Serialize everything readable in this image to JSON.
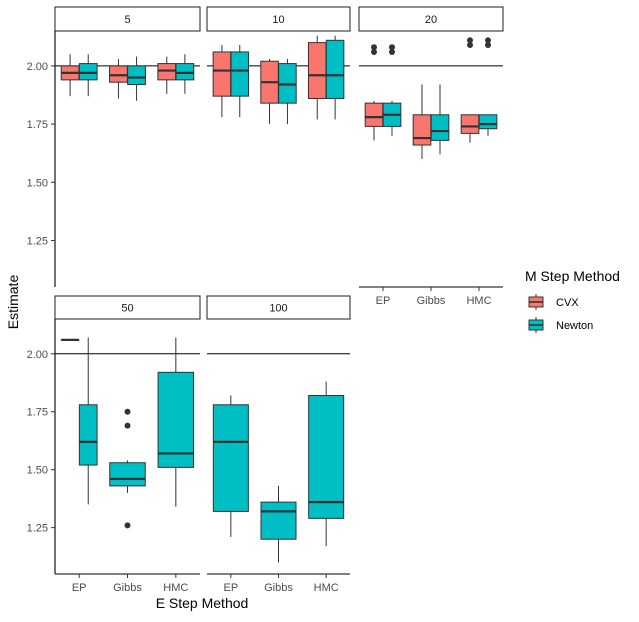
{
  "chart_data": {
    "type": "boxplot",
    "xlabel": "E Step Method",
    "ylabel": "Estimate",
    "categories": [
      "EP",
      "Gibbs",
      "HMC"
    ],
    "y_ticks": [
      1.25,
      1.5,
      1.75,
      2.0
    ],
    "y_tick_labels": [
      "1.25",
      "1.50",
      "1.75",
      "2.00"
    ],
    "ylim": [
      1.05,
      2.15
    ],
    "reference_line": 2.0,
    "legend": {
      "title": "M Step Method",
      "entries": [
        {
          "name": "CVX",
          "color": "#F8766D"
        },
        {
          "name": "Newton",
          "color": "#00BFC4"
        }
      ]
    },
    "panels": [
      {
        "label": "5",
        "show_x_axis": false,
        "boxes": [
          {
            "category": "EP",
            "method": "CVX",
            "min": 1.87,
            "q1": 1.94,
            "median": 1.97,
            "q3": 2.0,
            "max": 2.05,
            "outliers": []
          },
          {
            "category": "EP",
            "method": "Newton",
            "min": 1.87,
            "q1": 1.94,
            "median": 1.97,
            "q3": 2.01,
            "max": 2.05,
            "outliers": []
          },
          {
            "category": "Gibbs",
            "method": "CVX",
            "min": 1.86,
            "q1": 1.93,
            "median": 1.96,
            "q3": 2.0,
            "max": 2.03,
            "outliers": []
          },
          {
            "category": "Gibbs",
            "method": "Newton",
            "min": 1.85,
            "q1": 1.92,
            "median": 1.95,
            "q3": 2.0,
            "max": 2.04,
            "outliers": []
          },
          {
            "category": "HMC",
            "method": "CVX",
            "min": 1.88,
            "q1": 1.94,
            "median": 1.98,
            "q3": 2.01,
            "max": 2.04,
            "outliers": []
          },
          {
            "category": "HMC",
            "method": "Newton",
            "min": 1.88,
            "q1": 1.94,
            "median": 1.97,
            "q3": 2.01,
            "max": 2.05,
            "outliers": []
          }
        ]
      },
      {
        "label": "10",
        "show_x_axis": false,
        "boxes": [
          {
            "category": "EP",
            "method": "CVX",
            "min": 1.78,
            "q1": 1.87,
            "median": 1.98,
            "q3": 2.06,
            "max": 2.09,
            "outliers": []
          },
          {
            "category": "EP",
            "method": "Newton",
            "min": 1.78,
            "q1": 1.87,
            "median": 1.98,
            "q3": 2.06,
            "max": 2.09,
            "outliers": []
          },
          {
            "category": "Gibbs",
            "method": "CVX",
            "min": 1.75,
            "q1": 1.84,
            "median": 1.93,
            "q3": 2.02,
            "max": 2.03,
            "outliers": []
          },
          {
            "category": "Gibbs",
            "method": "Newton",
            "min": 1.75,
            "q1": 1.84,
            "median": 1.92,
            "q3": 2.01,
            "max": 2.03,
            "outliers": []
          },
          {
            "category": "HMC",
            "method": "CVX",
            "min": 1.77,
            "q1": 1.86,
            "median": 1.96,
            "q3": 2.1,
            "max": 2.13,
            "outliers": []
          },
          {
            "category": "HMC",
            "method": "Newton",
            "min": 1.77,
            "q1": 1.86,
            "median": 1.96,
            "q3": 2.11,
            "max": 2.13,
            "outliers": []
          }
        ]
      },
      {
        "label": "20",
        "show_x_axis": true,
        "boxes": [
          {
            "category": "EP",
            "method": "CVX",
            "min": 1.68,
            "q1": 1.74,
            "median": 1.78,
            "q3": 1.84,
            "max": 1.85,
            "outliers": [
              2.06,
              2.08
            ]
          },
          {
            "category": "EP",
            "method": "Newton",
            "min": 1.7,
            "q1": 1.74,
            "median": 1.79,
            "q3": 1.84,
            "max": 1.85,
            "outliers": [
              2.06,
              2.08
            ]
          },
          {
            "category": "Gibbs",
            "method": "CVX",
            "min": 1.6,
            "q1": 1.66,
            "median": 1.69,
            "q3": 1.79,
            "max": 1.92,
            "outliers": []
          },
          {
            "category": "Gibbs",
            "method": "Newton",
            "min": 1.62,
            "q1": 1.68,
            "median": 1.72,
            "q3": 1.79,
            "max": 1.92,
            "outliers": []
          },
          {
            "category": "HMC",
            "method": "CVX",
            "min": 1.67,
            "q1": 1.71,
            "median": 1.74,
            "q3": 1.79,
            "max": 1.79,
            "outliers": [
              2.09,
              2.11
            ]
          },
          {
            "category": "HMC",
            "method": "Newton",
            "min": 1.7,
            "q1": 1.73,
            "median": 1.75,
            "q3": 1.79,
            "max": 1.79,
            "outliers": [
              2.09,
              2.11
            ]
          }
        ]
      },
      {
        "label": "50",
        "show_x_axis": true,
        "boxes": [
          {
            "category": "EP",
            "method": "CVX",
            "min": 2.06,
            "q1": 2.06,
            "median": 2.06,
            "q3": 2.06,
            "max": 2.06,
            "outliers": []
          },
          {
            "category": "EP",
            "method": "Newton",
            "min": 1.35,
            "q1": 1.52,
            "median": 1.62,
            "q3": 1.78,
            "max": 2.07,
            "outliers": []
          },
          {
            "category": "Gibbs",
            "method": "Newton",
            "min": 1.4,
            "q1": 1.43,
            "median": 1.46,
            "q3": 1.53,
            "max": 1.54,
            "outliers": [
              1.26,
              1.69,
              1.75
            ]
          },
          {
            "category": "HMC",
            "method": "Newton",
            "min": 1.34,
            "q1": 1.51,
            "median": 1.57,
            "q3": 1.92,
            "max": 2.07,
            "outliers": []
          }
        ]
      },
      {
        "label": "100",
        "show_x_axis": true,
        "boxes": [
          {
            "category": "EP",
            "method": "Newton",
            "min": 1.21,
            "q1": 1.32,
            "median": 1.62,
            "q3": 1.78,
            "max": 1.82,
            "outliers": []
          },
          {
            "category": "Gibbs",
            "method": "Newton",
            "min": 1.1,
            "q1": 1.2,
            "median": 1.32,
            "q3": 1.36,
            "max": 1.43,
            "outliers": []
          },
          {
            "category": "HMC",
            "method": "Newton",
            "min": 1.17,
            "q1": 1.29,
            "median": 1.36,
            "q3": 1.82,
            "max": 1.88,
            "outliers": []
          }
        ]
      }
    ]
  }
}
